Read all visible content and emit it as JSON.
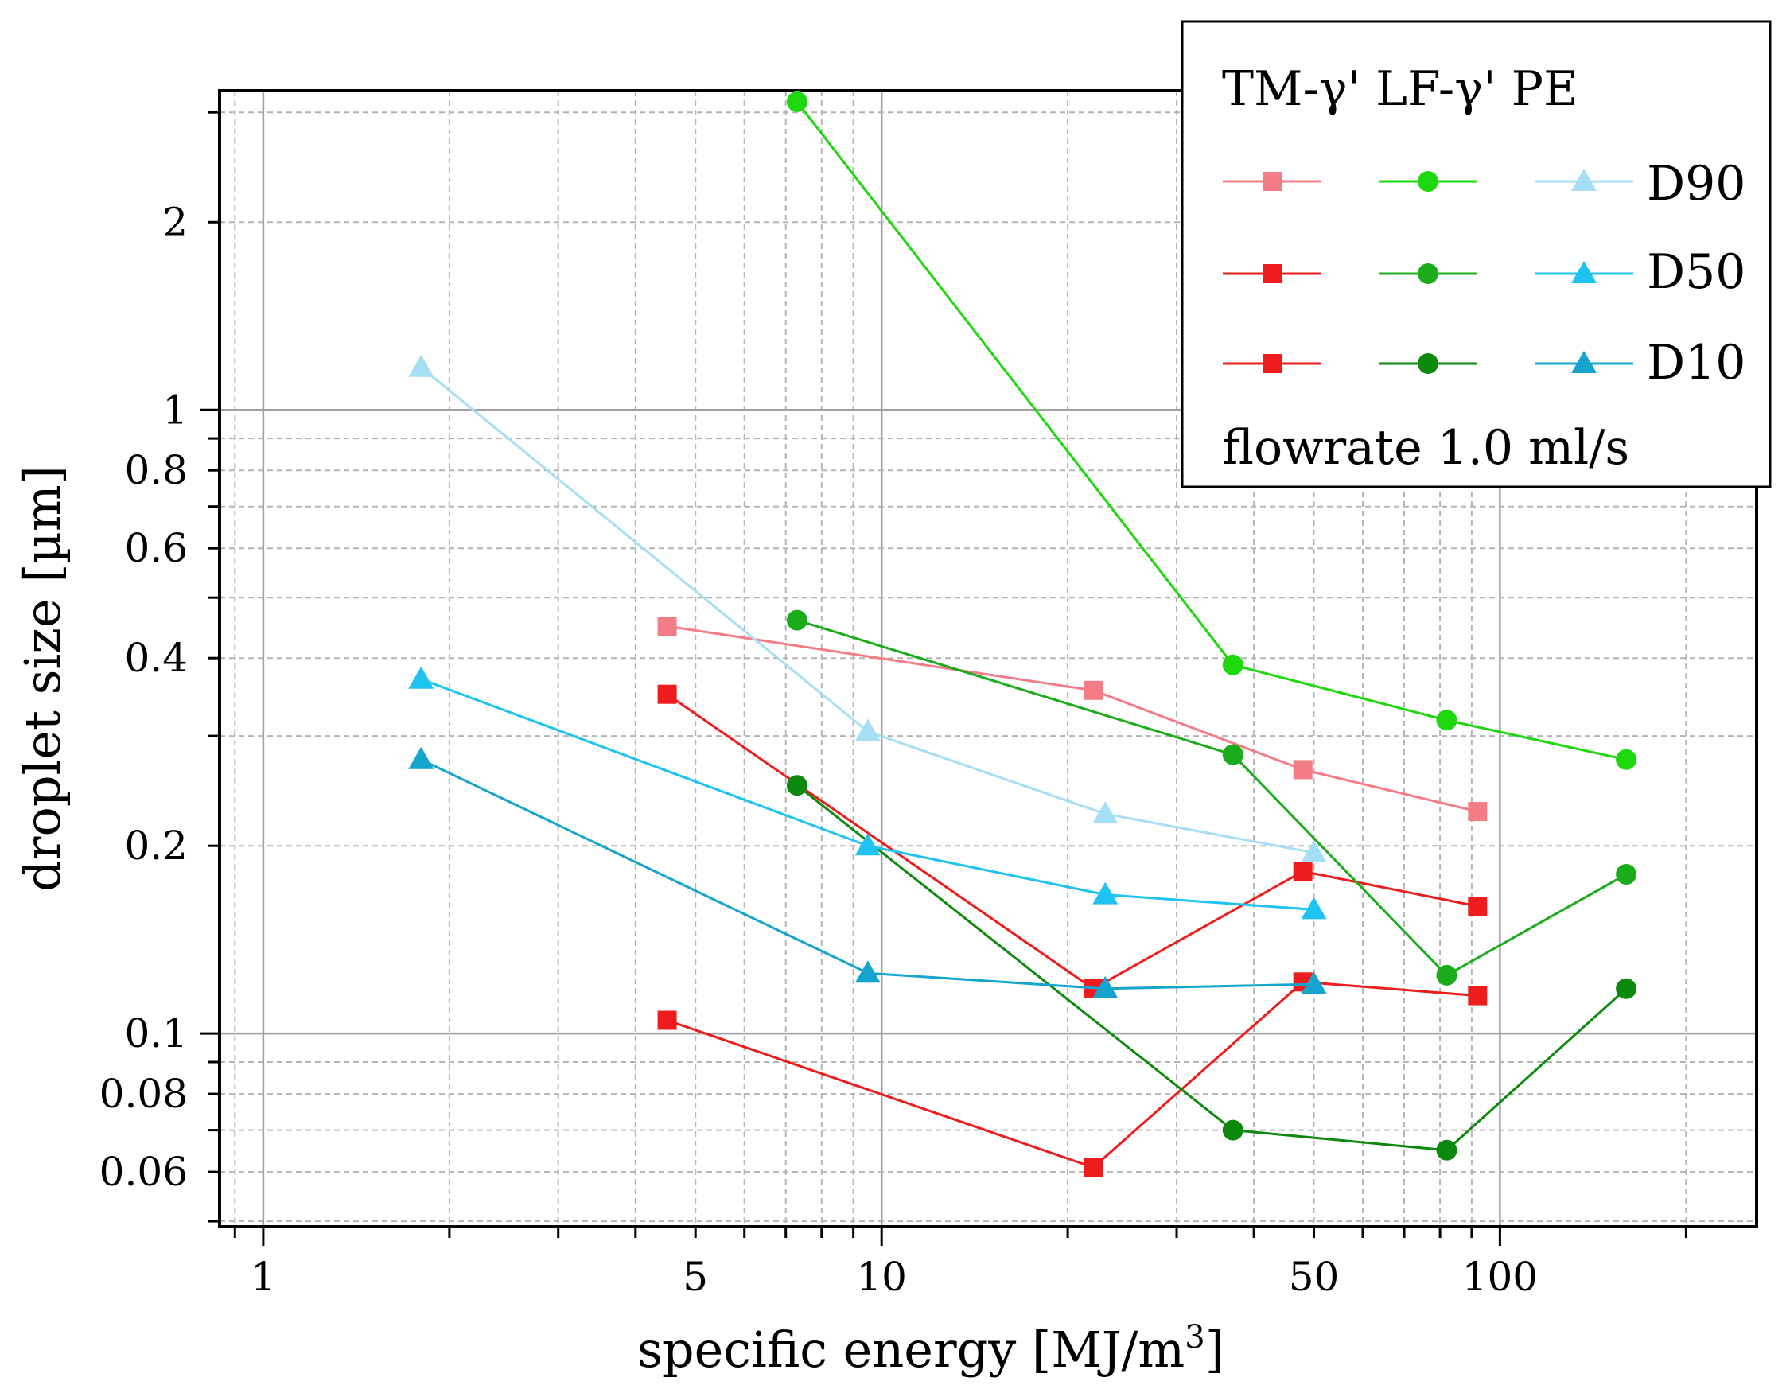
{
  "chart_data": {
    "type": "line",
    "title": "",
    "xlabel": "specific energy [MJ/m",
    "xlabel_sup": "3",
    "xlabel_end": "]",
    "ylabel": "droplet size [µm]",
    "x_scale": "log",
    "y_scale": "log",
    "xlim": [
      0.85,
      260
    ],
    "ylim": [
      0.049,
      3.25
    ],
    "x_ticks": [
      {
        "value": 1,
        "label": "1"
      },
      {
        "value": 5,
        "label": "5"
      },
      {
        "value": 10,
        "label": "10"
      },
      {
        "value": 50,
        "label": "50"
      },
      {
        "value": 100,
        "label": "100"
      }
    ],
    "y_ticks": [
      {
        "value": 0.06,
        "label": "0.06"
      },
      {
        "value": 0.08,
        "label": "0.08"
      },
      {
        "value": 0.1,
        "label": "0.1"
      },
      {
        "value": 0.2,
        "label": "0.2"
      },
      {
        "value": 0.4,
        "label": "0.4"
      },
      {
        "value": 0.6,
        "label": "0.6"
      },
      {
        "value": 0.8,
        "label": "0.8"
      },
      {
        "value": 1,
        "label": "1"
      },
      {
        "value": 2,
        "label": "2"
      }
    ],
    "grid": true,
    "series": [
      {
        "name": "TM-γ' D90",
        "group": "TM-γ'",
        "stat": "D90",
        "marker": "square",
        "color": "#f47c86",
        "x": [
          4.5,
          22,
          48,
          92
        ],
        "y": [
          0.45,
          0.355,
          0.265,
          0.227
        ]
      },
      {
        "name": "TM-γ' D50",
        "group": "TM-γ'",
        "stat": "D50",
        "marker": "square",
        "color": "#ee1c1c",
        "x": [
          4.5,
          22,
          48,
          92
        ],
        "y": [
          0.35,
          0.118,
          0.182,
          0.16
        ]
      },
      {
        "name": "TM-γ' D10",
        "group": "TM-γ'",
        "stat": "D10",
        "marker": "square",
        "color": "#ee1c1c",
        "x": [
          4.5,
          22,
          48,
          92
        ],
        "y": [
          0.105,
          0.061,
          0.121,
          0.115
        ]
      },
      {
        "name": "LF-γ' D90",
        "group": "LF-γ'",
        "stat": "D90",
        "marker": "circle",
        "color": "#1ed80e",
        "x": [
          7.3,
          37,
          82,
          160
        ],
        "y": [
          3.12,
          0.39,
          0.318,
          0.275
        ]
      },
      {
        "name": "LF-γ' D50",
        "group": "LF-γ'",
        "stat": "D50",
        "marker": "circle",
        "color": "#1bac1b",
        "x": [
          7.3,
          37,
          82,
          160
        ],
        "y": [
          0.46,
          0.28,
          0.124,
          0.18
        ]
      },
      {
        "name": "LF-γ' D10",
        "group": "LF-γ'",
        "stat": "D10",
        "marker": "circle",
        "color": "#0d8a0d",
        "x": [
          7.3,
          37,
          82,
          160
        ],
        "y": [
          0.25,
          0.07,
          0.065,
          0.118
        ]
      },
      {
        "name": "PE D90",
        "group": "PE",
        "stat": "D90",
        "marker": "triangle",
        "color": "#a5def5",
        "x": [
          1.8,
          9.5,
          23,
          50
        ],
        "y": [
          1.17,
          0.305,
          0.225,
          0.195
        ]
      },
      {
        "name": "PE D50",
        "group": "PE",
        "stat": "D50",
        "marker": "triangle",
        "color": "#1ec3f2",
        "x": [
          1.8,
          9.5,
          23,
          50
        ],
        "y": [
          0.37,
          0.2,
          0.167,
          0.158
        ]
      },
      {
        "name": "PE D10",
        "group": "PE",
        "stat": "D10",
        "marker": "triangle",
        "color": "#15a4cd",
        "x": [
          1.8,
          9.5,
          23,
          50
        ],
        "y": [
          0.275,
          0.125,
          0.118,
          0.12
        ]
      }
    ],
    "legend": {
      "position": "top-right",
      "header": "TM-γ' LF-γ'  PE",
      "rows": [
        "D90",
        "D50",
        "D10"
      ],
      "footer": "flowrate 1.0 ml/s"
    }
  }
}
